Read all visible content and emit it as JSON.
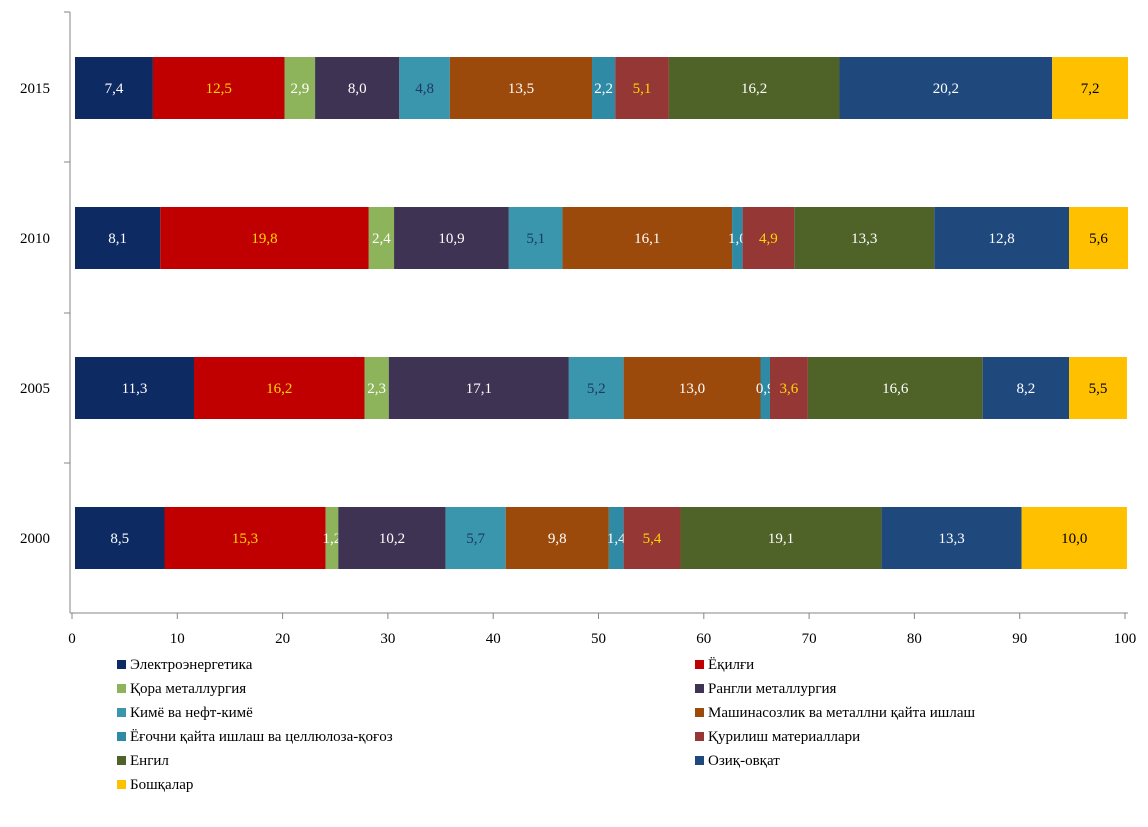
{
  "chart_data": {
    "type": "bar",
    "orientation": "horizontal",
    "stacked": true,
    "categories": [
      "2015",
      "2010",
      "2005",
      "2000"
    ],
    "xlim": [
      0,
      100
    ],
    "x_ticks": [
      "0",
      "10",
      "20",
      "30",
      "40",
      "50",
      "60",
      "70",
      "80",
      "90",
      "100"
    ],
    "grid": false,
    "legend_position": "bottom",
    "series": [
      {
        "name": "Электроэнергетика",
        "color": "#0d2a63",
        "label_color": "#ffffff",
        "values": [
          7.4,
          8.1,
          11.3,
          8.5
        ],
        "labels": [
          "7,4",
          "8,1",
          "11,3",
          "8,5"
        ]
      },
      {
        "name": "Ёқилғи",
        "color": "#c00000",
        "label_color": "#ffd700",
        "values": [
          12.5,
          19.8,
          16.2,
          15.3
        ],
        "labels": [
          "12,5",
          "19,8",
          "16,2",
          "15,3"
        ]
      },
      {
        "name": "Қора металлургия",
        "color": "#8db35b",
        "label_color": "#ffffff",
        "values": [
          2.9,
          2.4,
          2.3,
          1.2
        ],
        "labels": [
          "2,9",
          "2,4",
          "2,3",
          "1,2"
        ]
      },
      {
        "name": "Рангли металлургия",
        "color": "#3f3354",
        "label_color": "#ffffff",
        "values": [
          8.0,
          10.9,
          17.1,
          10.2
        ],
        "labels": [
          "8,0",
          "10,9",
          "17,1",
          "10,2"
        ]
      },
      {
        "name": "Кимё ва нефт-кимё",
        "color": "#3a96ad",
        "label_color": "#1f3864",
        "values": [
          4.8,
          5.1,
          5.2,
          5.7
        ],
        "labels": [
          "4,8",
          "5,1",
          "5,2",
          "5,7"
        ]
      },
      {
        "name": "Машинасозлик ва металлни қайта ишлаш",
        "color": "#9c4a0b",
        "label_color": "#ffffff",
        "values": [
          13.5,
          16.1,
          13.0,
          9.8
        ],
        "labels": [
          "13,5",
          "16,1",
          "13,0",
          "9,8"
        ]
      },
      {
        "name": "Ёғочни қайта ишлаш ва целлюлоза-қоғоз",
        "color": "#2e8aa5",
        "label_color": "#ffffff",
        "values": [
          2.2,
          1.0,
          0.9,
          1.4
        ],
        "labels": [
          "2,2",
          "1,0",
          "0,9",
          "1,4"
        ]
      },
      {
        "name": "Қурилиш материаллари",
        "color": "#953735",
        "label_color": "#ffd700",
        "values": [
          5.1,
          4.9,
          3.6,
          5.4
        ],
        "labels": [
          "5,1",
          "4,9",
          "3,6",
          "5,4"
        ]
      },
      {
        "name": "Енгил",
        "color": "#4f6228",
        "label_color": "#ffffff",
        "values": [
          16.2,
          13.3,
          16.6,
          19.1
        ],
        "labels": [
          "16,2",
          "13,3",
          "16,6",
          "19,1"
        ]
      },
      {
        "name": "Озиқ-овқат",
        "color": "#1f497d",
        "label_color": "#ffffff",
        "values": [
          20.2,
          12.8,
          8.2,
          13.3
        ],
        "labels": [
          "20,2",
          "12,8",
          "8,2",
          "13,3"
        ]
      },
      {
        "name": "Бошқалар",
        "color": "#ffc000",
        "label_color": "#000000",
        "values": [
          7.2,
          5.6,
          5.5,
          10.0
        ],
        "labels": [
          "7,2",
          "5,6",
          "5,5",
          "10,0"
        ]
      }
    ]
  }
}
